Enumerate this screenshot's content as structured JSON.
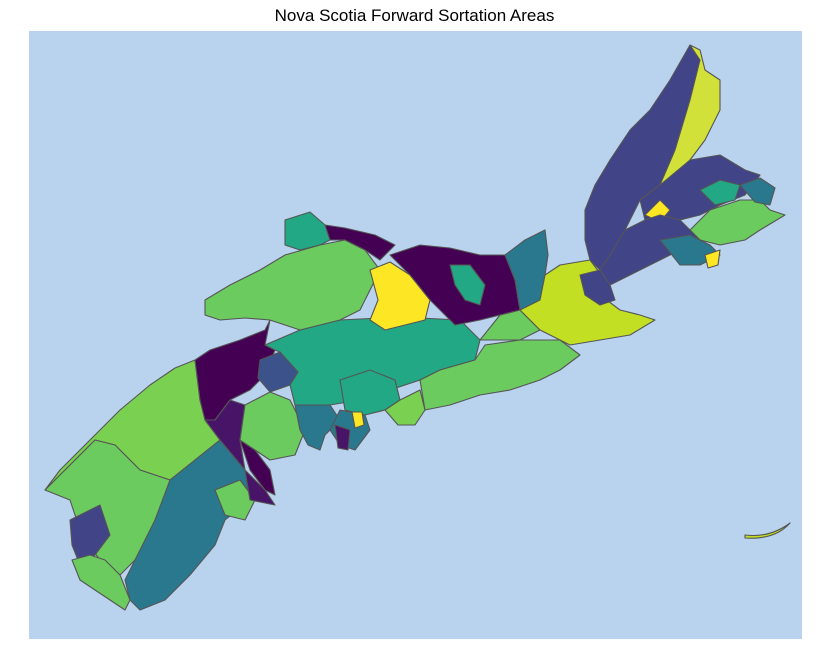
{
  "title": "Nova Scotia Forward Sortation Areas",
  "colors": {
    "water": "#b9d3ee",
    "border": "#555555",
    "viridis": [
      "#440154",
      "#414487",
      "#2a788e",
      "#22a884",
      "#7ad151",
      "#c2df23",
      "#fde725"
    ]
  },
  "legend": null
}
